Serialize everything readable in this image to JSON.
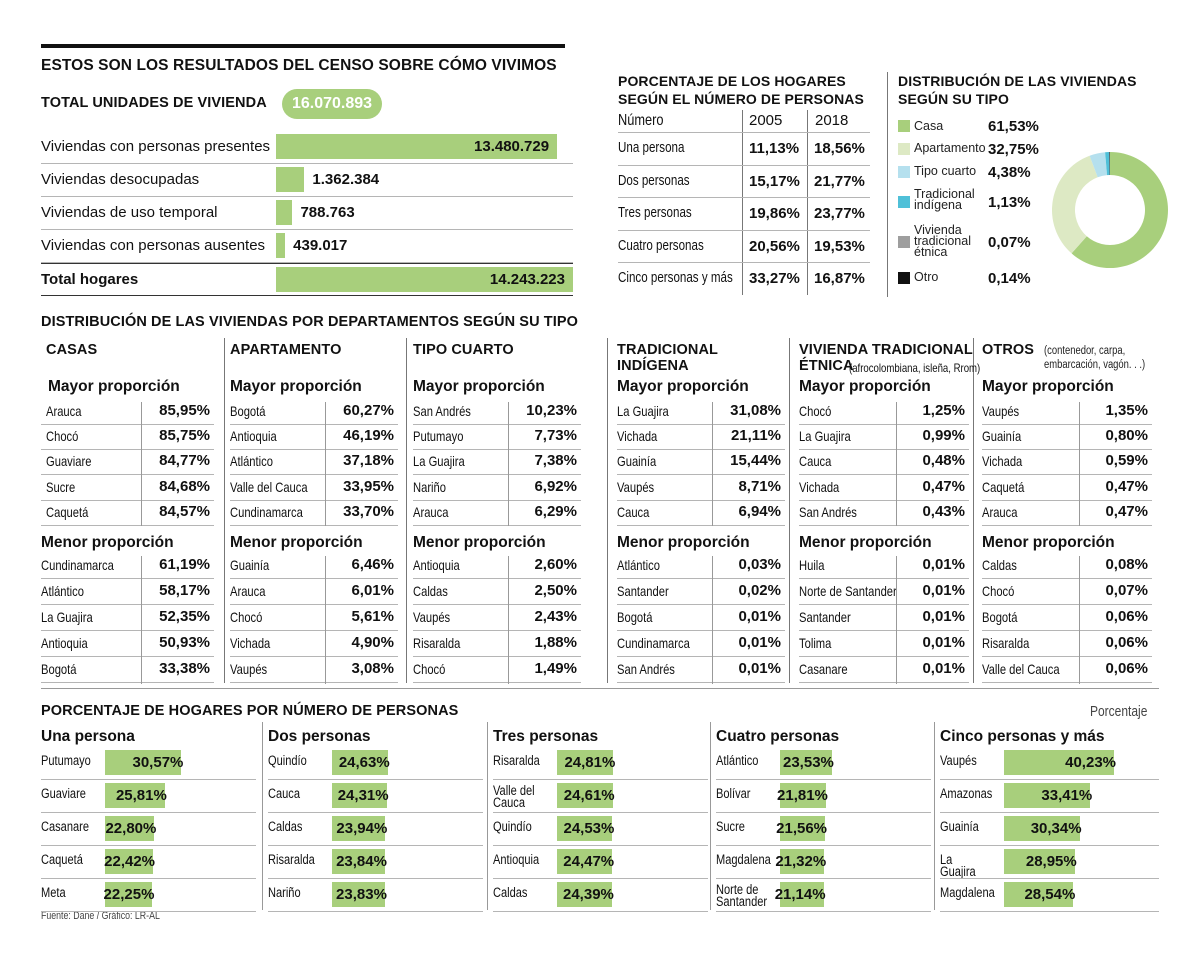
{
  "title": "ESTOS SON LOS RESULTADOS DEL CENSO SOBRE CÓMO VIVIMOS",
  "total_unidades": {
    "label": "TOTAL UNIDADES DE VIVIENDA",
    "value": "16.070.893"
  },
  "colors": {
    "bar": "#a8cf7c",
    "light_green": "#dde9c4",
    "light_blue": "#b5e0ee",
    "cyan": "#4fc0d8",
    "gray": "#9e9e9e",
    "black": "#111111"
  },
  "viviendas": [
    {
      "label": "Viviendas con personas presentes",
      "value_text": "13.480.729",
      "value": 13480729
    },
    {
      "label": "Viviendas desocupadas",
      "value_text": "1.362.384",
      "value": 1362384
    },
    {
      "label": "Viviendas de uso temporal",
      "value_text": "788.763",
      "value": 788763
    },
    {
      "label": "Viviendas con personas ausentes",
      "value_text": "439.017",
      "value": 439017
    },
    {
      "label": "Total hogares",
      "value_text": "14.243.223",
      "value": 14243223
    }
  ],
  "hogares_personas": {
    "title": "PORCENTAJE DE LOS HOGARES SEGÚN EL NÚMERO DE PERSONAS",
    "col_num": "Número",
    "col_2005": "2005",
    "col_2018": "2018",
    "rows": [
      {
        "label": "Una persona",
        "y2005": "11,13%",
        "y2018": "18,56%"
      },
      {
        "label": "Dos personas",
        "y2005": "15,17%",
        "y2018": "21,77%"
      },
      {
        "label": "Tres personas",
        "y2005": "19,86%",
        "y2018": "23,77%"
      },
      {
        "label": "Cuatro personas",
        "y2005": "20,56%",
        "y2018": "19,53%"
      },
      {
        "label": "Cinco personas y más",
        "y2005": "33,27%",
        "y2018": "16,87%"
      }
    ]
  },
  "chart_data": [
    {
      "type": "pie",
      "title": "DISTRIBUCIÓN DE LAS VIVIENDAS SEGÚN SU TIPO",
      "categories": [
        "Casa",
        "Apartamento",
        "Tipo cuarto",
        "Tradicional indígena",
        "Vivienda tradicional étnica",
        "Otro"
      ],
      "values": [
        61.53,
        32.75,
        4.38,
        1.13,
        0.07,
        0.14
      ],
      "labels": [
        "61,53%",
        "32,75%",
        "4,38%",
        "1,13%",
        "0,07%",
        "0,14%"
      ]
    },
    {
      "type": "bar",
      "title": "PORCENTAJE DE HOGARES POR NÚMERO DE PERSONAS",
      "unit_label": "Porcentaje",
      "groups": [
        {
          "name": "Una persona",
          "categories": [
            "Putumayo",
            "Guaviare",
            "Casanare",
            "Caquetá",
            "Meta"
          ],
          "values": [
            30.57,
            25.81,
            22.8,
            22.42,
            22.25
          ],
          "labels": [
            "30,57%",
            "25,81%",
            "22,80%",
            "22,42%",
            "22,25%"
          ]
        },
        {
          "name": "Dos personas",
          "categories": [
            "Quindío",
            "Cauca",
            "Caldas",
            "Risaralda",
            "Nariño"
          ],
          "values": [
            24.63,
            24.31,
            23.94,
            23.84,
            23.83
          ],
          "labels": [
            "24,63%",
            "24,31%",
            "23,94%",
            "23,84%",
            "23,83%"
          ]
        },
        {
          "name": "Tres personas",
          "categories": [
            "Risaralda",
            "Valle del Cauca",
            "Quindío",
            "Antioquia",
            "Caldas"
          ],
          "values": [
            24.81,
            24.61,
            24.53,
            24.47,
            24.39
          ],
          "labels": [
            "24,81%",
            "24,61%",
            "24,53%",
            "24,47%",
            "24,39%"
          ]
        },
        {
          "name": "Cuatro personas",
          "categories": [
            "Atlántico",
            "Bolívar",
            "Sucre",
            "Magdalena",
            "Norte de Santander"
          ],
          "values": [
            23.53,
            21.81,
            21.56,
            21.32,
            21.14
          ],
          "labels": [
            "23,53%",
            "21,81%",
            "21,56%",
            "21,32%",
            "21,14%"
          ]
        },
        {
          "name": "Cinco personas y más",
          "categories": [
            "Vaupés",
            "Amazonas",
            "Guainía",
            "La Guajira",
            "Magdalena"
          ],
          "values": [
            40.23,
            33.41,
            30.34,
            28.95,
            28.54
          ],
          "labels": [
            "40,23%",
            "33,41%",
            "30,34%",
            "28,95%",
            "28,54%"
          ]
        }
      ]
    }
  ],
  "departamentos": {
    "title": "DISTRIBUCIÓN DE LAS VIVIENDAS POR DEPARTAMENTOS SEGÚN SU TIPO",
    "mayor": "Mayor proporción",
    "menor": "Menor proporción",
    "cols": [
      {
        "title": "CASAS",
        "title2": "",
        "note": "",
        "mayor": [
          [
            "Arauca",
            "85,95%"
          ],
          [
            "Chocó",
            "85,75%"
          ],
          [
            "Guaviare",
            "84,77%"
          ],
          [
            "Sucre",
            "84,68%"
          ],
          [
            "Caquetá",
            "84,57%"
          ]
        ],
        "menor": [
          [
            "Cundinamarca",
            "61,19%"
          ],
          [
            "Atlántico",
            "58,17%"
          ],
          [
            "La Guajira",
            "52,35%"
          ],
          [
            "Antioquia",
            "50,93%"
          ],
          [
            "Bogotá",
            "33,38%"
          ]
        ]
      },
      {
        "title": "APARTAMENTO",
        "title2": "",
        "note": "",
        "mayor": [
          [
            "Bogotá",
            "60,27%"
          ],
          [
            "Antioquia",
            "46,19%"
          ],
          [
            "Atlántico",
            "37,18%"
          ],
          [
            "Valle del Cauca",
            "33,95%"
          ],
          [
            "Cundinamarca",
            "33,70%"
          ]
        ],
        "menor": [
          [
            "Guainía",
            "6,46%"
          ],
          [
            "Arauca",
            "6,01%"
          ],
          [
            "Chocó",
            "5,61%"
          ],
          [
            "Vichada",
            "4,90%"
          ],
          [
            "Vaupés",
            "3,08%"
          ]
        ]
      },
      {
        "title": "TIPO CUARTO",
        "title2": "",
        "note": "",
        "mayor": [
          [
            "San Andrés",
            "10,23%"
          ],
          [
            "Putumayo",
            "7,73%"
          ],
          [
            "La Guajira",
            "7,38%"
          ],
          [
            "Nariño",
            "6,92%"
          ],
          [
            "Arauca",
            "6,29%"
          ]
        ],
        "menor": [
          [
            "Antioquia",
            "2,60%"
          ],
          [
            "Caldas",
            "2,50%"
          ],
          [
            "Vaupés",
            "2,43%"
          ],
          [
            "Risaralda",
            "1,88%"
          ],
          [
            "Chocó",
            "1,49%"
          ]
        ]
      },
      {
        "title": "TRADICIONAL",
        "title2": "INDÍGENA",
        "note": "",
        "mayor": [
          [
            "La Guajira",
            "31,08%"
          ],
          [
            "Vichada",
            "21,11%"
          ],
          [
            "Guainía",
            "15,44%"
          ],
          [
            "Vaupés",
            "8,71%"
          ],
          [
            "Cauca",
            "6,94%"
          ]
        ],
        "menor": [
          [
            "Atlántico",
            "0,03%"
          ],
          [
            "Santander",
            "0,02%"
          ],
          [
            "Bogotá",
            "0,01%"
          ],
          [
            "Cundinamarca",
            "0,01%"
          ],
          [
            "San Andrés",
            "0,01%"
          ]
        ]
      },
      {
        "title": "VIVIENDA TRADICIONAL",
        "title2": "ÉTNICA",
        "note": "(afrocolombiana, isleña, Rrom)",
        "mayor": [
          [
            "Chocó",
            "1,25%"
          ],
          [
            "La Guajira",
            "0,99%"
          ],
          [
            "Cauca",
            "0,48%"
          ],
          [
            "Vichada",
            "0,47%"
          ],
          [
            "San Andrés",
            "0,43%"
          ]
        ],
        "menor": [
          [
            "Huila",
            "0,01%"
          ],
          [
            "Norte de Santander",
            "0,01%"
          ],
          [
            "Santander",
            "0,01%"
          ],
          [
            "Tolima",
            "0,01%"
          ],
          [
            "Casanare",
            "0,01%"
          ]
        ]
      },
      {
        "title": "OTROS",
        "title2": "",
        "note": "(contenedor, carpa, embarcación, vagón. . .)",
        "mayor": [
          [
            "Vaupés",
            "1,35%"
          ],
          [
            "Guainía",
            "0,80%"
          ],
          [
            "Vichada",
            "0,59%"
          ],
          [
            "Caquetá",
            "0,47%"
          ],
          [
            "Arauca",
            "0,47%"
          ]
        ],
        "menor": [
          [
            "Caldas",
            "0,08%"
          ],
          [
            "Chocó",
            "0,07%"
          ],
          [
            "Bogotá",
            "0,06%"
          ],
          [
            "Risaralda",
            "0,06%"
          ],
          [
            "Valle del Cauca",
            "0,06%"
          ]
        ]
      }
    ]
  },
  "source": "Fuente: Dane / Gráfico: LR-AL"
}
